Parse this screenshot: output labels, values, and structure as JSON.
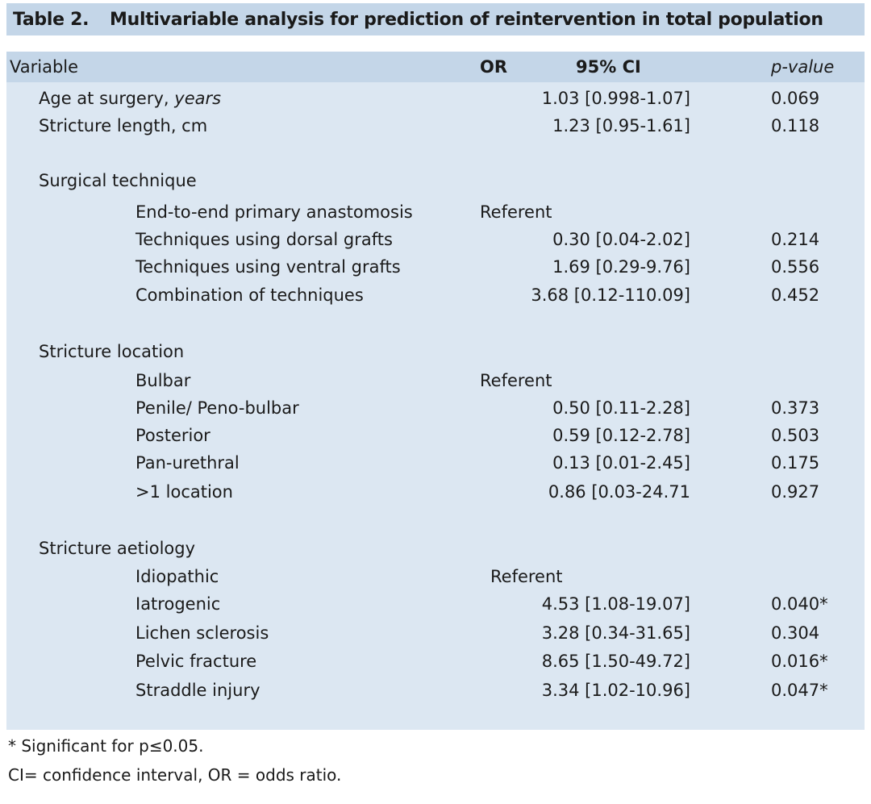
{
  "table": {
    "label": "Table 2.",
    "title": "Multivariable analysis for prediction of reintervention in total population",
    "headers": {
      "variable": "Variable",
      "or": "OR",
      "ci": "95% CI",
      "p": "p-value"
    },
    "rows": [
      {
        "label": "Age at surgery,",
        "label_em": "years",
        "ci": "1.03 [0.998-1.07]",
        "p": "0.069"
      },
      {
        "label": "Stricture length, cm",
        "ci": "1.23 [0.95-1.61]",
        "p": "0.118"
      },
      {
        "label": "Surgical technique"
      },
      {
        "label": "End-to-end primary anastomosis",
        "ref": "Referent"
      },
      {
        "label": "Techniques using dorsal grafts",
        "ci": "0.30 [0.04-2.02]",
        "p": "0.214"
      },
      {
        "label": "Techniques using ventral grafts",
        "ci": "1.69 [0.29-9.76]",
        "p": "0.556"
      },
      {
        "label": "Combination of techniques",
        "ci": "3.68 [0.12-110.09]",
        "p": "0.452"
      },
      {
        "label": "Stricture location"
      },
      {
        "label": "Bulbar",
        "ref": "Referent"
      },
      {
        "label": "Penile/ Peno-bulbar",
        "ci": "0.50 [0.11-2.28]",
        "p": "0.373"
      },
      {
        "label": "Posterior",
        "ci": "0.59 [0.12-2.78]",
        "p": "0.503"
      },
      {
        "label": "Pan-urethral",
        "ci": "0.13 [0.01-2.45]",
        "p": "0.175"
      },
      {
        "label": ">1 location",
        "ci": "0.86 [0.03-24.71",
        "p": "0.927"
      },
      {
        "label": "Stricture aetiology"
      },
      {
        "label": "Idiopathic",
        "ref": "Referent"
      },
      {
        "label": "Iatrogenic",
        "ci": "4.53 [1.08-19.07]",
        "p": "0.040*"
      },
      {
        "label": "Lichen sclerosis",
        "ci": "3.28 [0.34-31.65]",
        "p": "0.304"
      },
      {
        "label": "Pelvic fracture",
        "ci": "8.65 [1.50-49.72]",
        "p": "0.016*"
      },
      {
        "label": "Straddle injury",
        "ci": "3.34 [1.02-10.96]",
        "p": "0.047*"
      }
    ]
  },
  "footnotes": {
    "significance": "* Significant for p≤0.05.",
    "abbreviations": "CI= confidence interval, OR = odds ratio."
  }
}
